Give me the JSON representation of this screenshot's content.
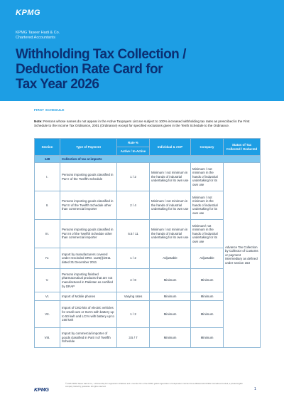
{
  "header": {
    "logo": "KPMG",
    "firm_line1": "KPMG Taseer Hadi & Co.",
    "firm_line2": "Chartered Accountants",
    "title_line1": "Withholding Tax Collection /",
    "title_line2": "Deduction Rate Card for",
    "title_line3": "Tax Year 2026"
  },
  "schedule_label": "FIRST SCHEDULE",
  "note": {
    "label": "Note:",
    "text": "Persons whose names do not appear in the Active Taxpayers List are subject to 100% increased withholding tax rates as prescribed in the First Schedule to the Income Tax Ordinance, 2001 (Ordinance) except for specified exclusions given in the Tenth Schedule to the Ordinance."
  },
  "table": {
    "headers": {
      "section": "Section",
      "type": "Type of Payment",
      "rate": "Rate %",
      "rate_sub": "Active / In-Active",
      "individual": "Individual & AOP",
      "company": "Company",
      "status": "Status of Tax Collected / Deducted"
    },
    "section_row": {
      "section": "148",
      "label": "Collection of tax at imports"
    },
    "rows": [
      {
        "no": "I.",
        "type": "Persons importing goods classified in Part I of the Twelfth Schedule",
        "rate": "1 / 2",
        "individual": "Minimum / not minimum in the hands of industrial undertaking for its own use",
        "company": "Minimum / not minimum in the hands of industrial undertaking for its own use"
      },
      {
        "no": "II.",
        "type": "Persons importing goods classified in Part II of the Twelfth Schedule other than commercial importer",
        "rate": "2 / 4",
        "individual": "Minimum / not minimum in the hands of industrial undertaking for its own use",
        "company": "Minimum / not minimum in the hands of industrial undertaking for its own use"
      },
      {
        "no": "III.",
        "type": "Persons importing goods classified in Part III of the Twelfth Schedule other than commercial importer",
        "rate": "5.5 / 11",
        "individual": "Minimum / not minimum in the hands of industrial undertaking for its own use",
        "company": "Minimum/ not minimum in the hands of industrial undertaking for its own use"
      },
      {
        "no": "IV.",
        "type": "Import by manufacturers covered under rescinded SRO. 1125(I)/2011 dated 31 December 2011",
        "rate": "1 / 2",
        "individual": "Adjustable",
        "company": "Adjustable"
      },
      {
        "no": "V.",
        "type": "Persons importing finished pharmaceutical products that are not manufactured in Pakistan as certified by DRAP",
        "rate": "4 / 8",
        "individual": "Minimum",
        "company": "Minimum"
      },
      {
        "no": "VI.",
        "type": "Import of Mobile phones",
        "rate": "Varying rates",
        "individual": "Minimum",
        "company": "Minimum"
      },
      {
        "no": "VII.",
        "type": "Import of CKD kits of electric vehicles for small cars or SUVs with battery up to 50 kwh and LCVs with battery up to 150 kwh",
        "rate": "1 / 2",
        "individual": "Minimum",
        "company": "Minimum"
      },
      {
        "no": "VIII.",
        "type": "Import by commercial importer of goods classified in Part II of Twelfth Schedule",
        "rate": "3.5 / 7",
        "individual": "Minimum",
        "company": "Minimum"
      }
    ],
    "status_text": "Advance Tax Collection by Collector of Customs or payment intermediary as defined under section 153"
  },
  "footer": {
    "logo": "KPMG",
    "text": "© 2025 KPMG Taseer Hadi & Co., a Partnership firm registered in Pakistan and a member firm of the KPMG global organization of independent member firms affiliated with KPMG International Limited, a private English company limited by guarantee. All rights reserved.",
    "page": "1"
  },
  "colors": {
    "banner": "#1d9ee4",
    "title": "#0b2f73",
    "table_header": "#1d9ee4",
    "section_row": "#7cc6ef"
  }
}
